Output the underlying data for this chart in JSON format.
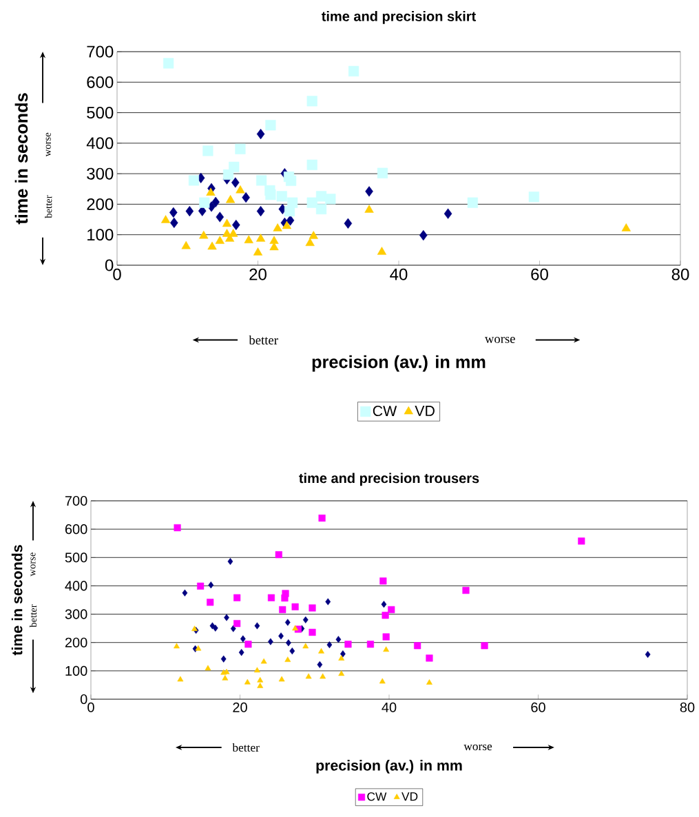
{
  "chart_data": [
    {
      "type": "scatter",
      "title": "time and precision skirt",
      "xlabel": "precision (av.) in mm",
      "ylabel": "time in seconds",
      "annotations": [
        "better",
        "worse",
        "worse",
        "better"
      ],
      "xlim": [
        0,
        80
      ],
      "xticks": [
        0,
        20,
        40,
        60,
        80
      ],
      "ylim": [
        0,
        700
      ],
      "yticks": [
        0,
        100,
        200,
        300,
        400,
        500,
        600,
        700
      ],
      "grid": "y",
      "legend": "bottom",
      "series": [
        {
          "color": "#000080",
          "marker": "diamond",
          "x": [
            8.0,
            8.1,
            10.3,
            11.9,
            12.1,
            13.4,
            14.0,
            13.4,
            14.6,
            15.6,
            16.8,
            16.9,
            18.3,
            20.4,
            20.4,
            23.8,
            23.5,
            23.8,
            24.6,
            35.8,
            32.8,
            47.0,
            43.5
          ],
          "values": [
            173,
            139,
            177,
            286,
            178,
            252,
            207,
            192,
            158,
            282,
            271,
            132,
            222,
            430,
            177,
            301,
            184,
            139,
            147,
            242,
            137,
            169,
            98
          ]
        },
        {
          "name": "CW",
          "color": "#ccffff",
          "marker": "square",
          "x": [
            7.3,
            33.6,
            27.7,
            21.8,
            17.5,
            12.9,
            27.7,
            16.6,
            15.8,
            10.9,
            20.5,
            24.4,
            24.7,
            37.7,
            12.4,
            21.7,
            21.8,
            23.4,
            24.9,
            24.5,
            27.7,
            29.0,
            30.3,
            29.0,
            50.5,
            59.2
          ],
          "values": [
            662,
            636,
            538,
            459,
            381,
            375,
            329,
            322,
            297,
            278,
            278,
            290,
            277,
            302,
            205,
            245,
            231,
            226,
            205,
            177,
            205,
            226,
            217,
            184,
            205,
            224
          ]
        },
        {
          "name": "VD",
          "color": "#ffcc00",
          "marker": "triangle",
          "x": [
            6.9,
            9.8,
            12.3,
            13.3,
            13.5,
            14.6,
            15.6,
            15.6,
            16.0,
            16.5,
            16.1,
            17.5,
            18.7,
            20.0,
            20.4,
            22.3,
            22.3,
            22.8,
            24.1,
            27.4,
            27.9,
            35.8,
            37.6,
            72.3
          ],
          "values": [
            147,
            62,
            96,
            237,
            60,
            79,
            135,
            102,
            86,
            102,
            213,
            245,
            81,
            41,
            86,
            79,
            58,
            120,
            128,
            72,
            95,
            181,
            43,
            120
          ]
        }
      ]
    },
    {
      "type": "scatter",
      "title": "time and precision trousers",
      "xlabel": "precision (av.) in mm",
      "ylabel": "time in seconds",
      "annotations": [
        "better",
        "worse",
        "worse",
        "better"
      ],
      "xlim": [
        0,
        80
      ],
      "xticks": [
        0,
        20,
        40,
        60,
        80
      ],
      "ylim": [
        0,
        700
      ],
      "yticks": [
        0,
        100,
        200,
        300,
        400,
        500,
        600,
        700
      ],
      "grid": "y",
      "legend": "bottom",
      "series": [
        {
          "color": "#000080",
          "marker": "diamond",
          "x": [
            12.6,
            18.7,
            16.1,
            14.1,
            14.0,
            18.2,
            16.3,
            16.7,
            19.1,
            20.4,
            20.2,
            17.8,
            22.3,
            24.1,
            25.5,
            26.4,
            26.5,
            27.0,
            28.3,
            28.8,
            31.8,
            32.0,
            33.2,
            30.7,
            33.8,
            39.3,
            74.7
          ],
          "values": [
            375,
            486,
            403,
            243,
            178,
            288,
            259,
            251,
            249,
            213,
            165,
            142,
            259,
            203,
            223,
            271,
            199,
            170,
            249,
            280,
            344,
            192,
            211,
            122,
            160,
            335,
            158
          ]
        },
        {
          "name": "CW",
          "color": "#ff00ff",
          "marker": "square",
          "x": [
            11.6,
            31.0,
            25.2,
            14.7,
            16.0,
            19.6,
            19.6,
            21.1,
            24.2,
            26.1,
            26.0,
            25.7,
            27.4,
            29.7,
            27.8,
            29.7,
            34.5,
            37.5,
            39.2,
            39.5,
            40.3,
            39.6,
            43.8,
            45.4,
            50.3,
            52.8,
            65.8
          ],
          "values": [
            605,
            639,
            510,
            399,
            342,
            358,
            267,
            194,
            358,
            373,
            357,
            316,
            326,
            322,
            247,
            236,
            194,
            194,
            417,
            296,
            316,
            220,
            189,
            145,
            384,
            189,
            558
          ]
        },
        {
          "name": "VD",
          "color": "#ffcc00",
          "marker": "triangle",
          "x": [
            11.5,
            12.0,
            13.9,
            14.4,
            15.7,
            17.8,
            18.2,
            18.0,
            21.0,
            22.3,
            22.7,
            22.7,
            23.2,
            25.6,
            26.4,
            27.4,
            28.8,
            29.2,
            30.9,
            31.1,
            33.6,
            33.6,
            39.1,
            39.6,
            45.4
          ],
          "values": [
            186,
            69,
            247,
            178,
            108,
            93,
            95,
            73,
            59,
            101,
            66,
            46,
            132,
            69,
            138,
            249,
            186,
            79,
            168,
            79,
            143,
            89,
            62,
            174,
            58
          ]
        }
      ]
    }
  ]
}
